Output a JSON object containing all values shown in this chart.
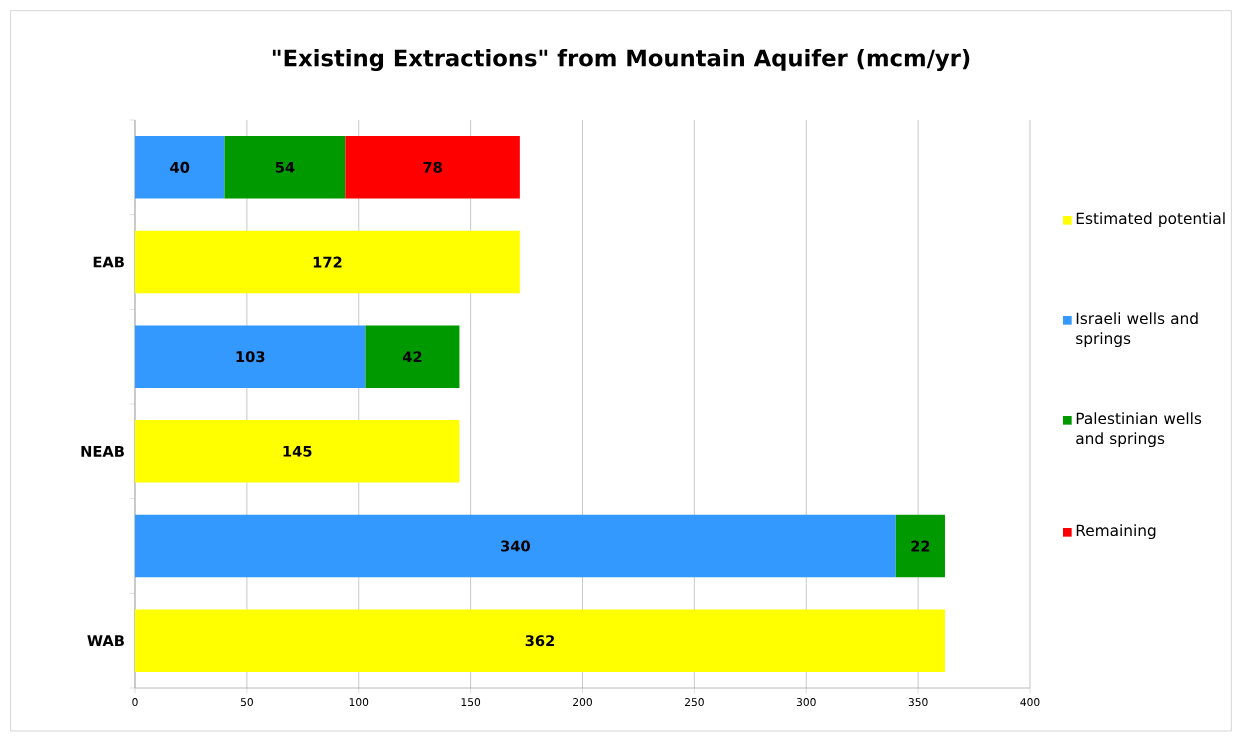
{
  "chart_data": {
    "type": "bar",
    "orientation": "horizontal",
    "stacked": true,
    "title": "\"Existing Extractions\" from Mountain Aquifer (mcm/yr)",
    "categories": [
      null,
      "EAB",
      null,
      "NEAB",
      null,
      "WAB"
    ],
    "series": [
      {
        "name": "Estimated potential",
        "color": "#ffff00",
        "values": [
          null,
          172,
          null,
          145,
          null,
          362
        ]
      },
      {
        "name": "Israeli wells and springs",
        "color": "#3399ff",
        "values": [
          40,
          null,
          103,
          null,
          340,
          null
        ]
      },
      {
        "name": "Palestinian wells and springs",
        "color": "#009900",
        "values": [
          54,
          null,
          42,
          null,
          22,
          null
        ]
      },
      {
        "name": "Remaining",
        "color": "#ff0000",
        "values": [
          78,
          null,
          null,
          null,
          null,
          null
        ]
      }
    ],
    "xlim": [
      0,
      400
    ],
    "xticks": [
      0,
      50,
      100,
      150,
      200,
      250,
      300,
      350,
      400
    ],
    "grid": "x",
    "legend": "right",
    "data_labels": true
  }
}
